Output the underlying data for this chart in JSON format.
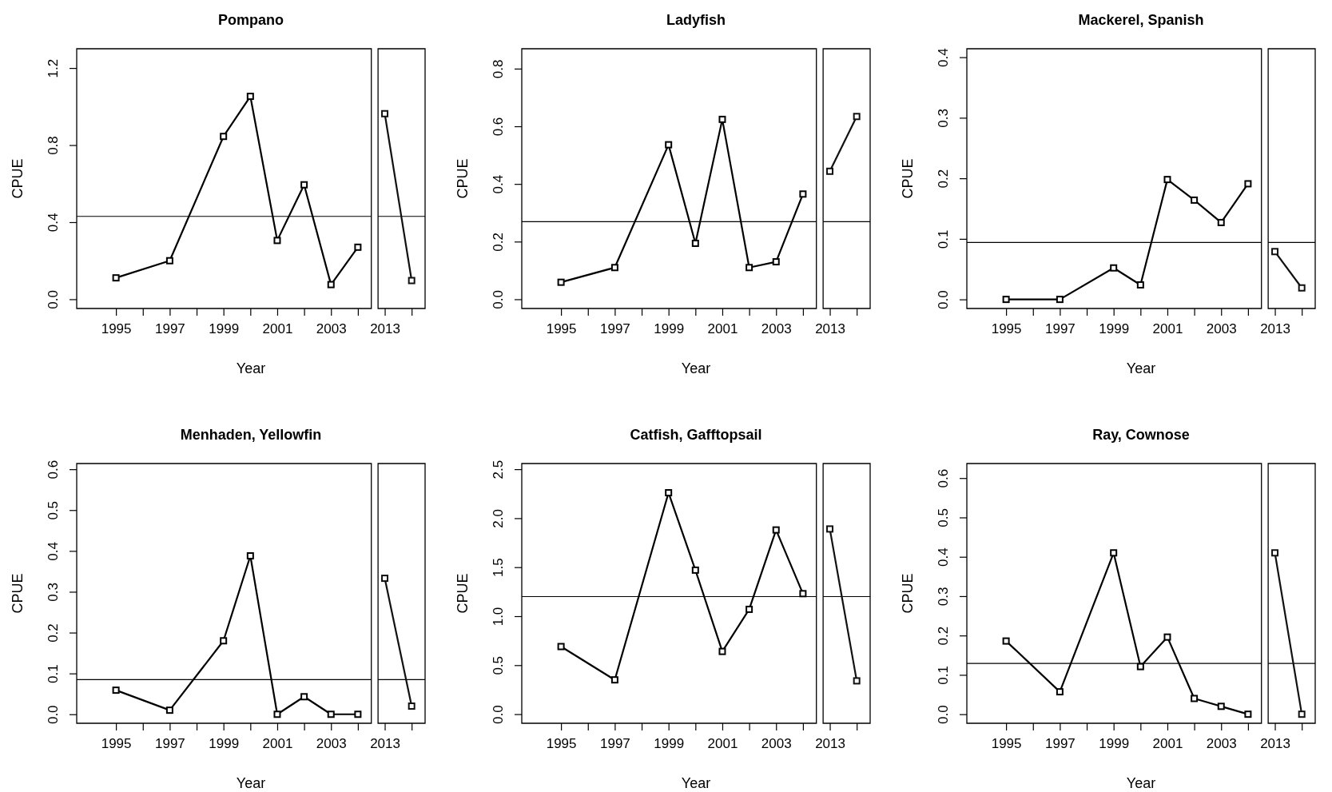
{
  "chart_data": [
    {
      "type": "line",
      "title": "Pompano",
      "xlabel": "Year",
      "ylabel": "CPUE",
      "marker": "square",
      "categories": [
        "1995",
        null,
        "1997",
        null,
        "1999",
        null,
        "2001",
        null,
        "2003",
        null,
        "2013",
        null
      ],
      "series": [
        {
          "color": "#000000",
          "values": [
            0.111,
            null,
            0.2,
            null,
            0.845,
            1.053,
            0.305,
            0.594,
            0.076,
            0.27,
            null,
            null
          ]
        },
        {
          "color": "#111111",
          "values": [
            null,
            null,
            null,
            null,
            null,
            null,
            null,
            null,
            null,
            null,
            0.963,
            0.097
          ]
        }
      ],
      "ylim": [
        -0.048,
        1.3
      ],
      "yticks": [
        {
          "value": 0,
          "label": "0.0"
        },
        0.4,
        0.8,
        1.2
      ],
      "ref_lines": [
        {
          "axis": "y",
          "value": 0.43
        }
      ]
    },
    {
      "type": "line",
      "title": "Ladyfish",
      "xlabel": "Year",
      "ylabel": "CPUE",
      "marker": "square",
      "categories": [
        "1995",
        null,
        "1997",
        null,
        "1999",
        null,
        "2001",
        null,
        "2003",
        null,
        "2013",
        null
      ],
      "series": [
        {
          "color": "#000000",
          "values": [
            0.059,
            null,
            0.11,
            null,
            0.536,
            0.194,
            0.624,
            0.11,
            0.13,
            0.365,
            null,
            null
          ]
        },
        {
          "color": "#111111",
          "values": [
            null,
            null,
            null,
            null,
            null,
            null,
            null,
            null,
            null,
            null,
            0.444,
            0.634
          ]
        }
      ],
      "ylim": [
        -0.032,
        0.869
      ],
      "yticks": [
        {
          "value": 0,
          "label": "0.0"
        },
        0.2,
        0.4,
        0.6,
        0.8
      ],
      "ref_lines": [
        {
          "axis": "y",
          "value": 0.269
        }
      ]
    },
    {
      "type": "line",
      "title": "Mackerel, Spanish",
      "xlabel": "Year",
      "ylabel": "CPUE",
      "marker": "square",
      "categories": [
        "1995",
        null,
        "1997",
        null,
        "1999",
        null,
        "2001",
        null,
        "2003",
        null,
        "2013",
        null
      ],
      "series": [
        {
          "color": "#000000",
          "values": [
            0,
            null,
            0,
            null,
            0.052,
            0.024,
            0.198,
            0.164,
            0.127,
            0.191,
            null,
            null
          ]
        },
        {
          "color": "#111111",
          "values": [
            null,
            null,
            null,
            null,
            null,
            null,
            null,
            null,
            null,
            null,
            0.079,
            0.019
          ]
        }
      ],
      "ylim": [
        -0.015,
        0.414
      ],
      "yticks": [
        {
          "value": 0,
          "label": "0.0"
        },
        0.1,
        0.2,
        0.3,
        0.4
      ],
      "ref_lines": [
        {
          "axis": "y",
          "value": 0.094
        }
      ]
    },
    {
      "type": "line",
      "title": "Menhaden, Yellowfin",
      "xlabel": "Year",
      "ylabel": "CPUE",
      "marker": "square",
      "categories": [
        "1995",
        null,
        "1997",
        null,
        "1999",
        null,
        "2001",
        null,
        "2003",
        null,
        "2013",
        null
      ],
      "series": [
        {
          "color": "#000000",
          "values": [
            0.059,
            null,
            0.01,
            null,
            0.18,
            0.388,
            0,
            0.043,
            0,
            0,
            null,
            null
          ]
        },
        {
          "color": "#111111",
          "values": [
            null,
            null,
            null,
            null,
            null,
            null,
            null,
            null,
            null,
            null,
            0.333,
            0.02
          ]
        }
      ],
      "ylim": [
        -0.022,
        0.614
      ],
      "yticks": [
        {
          "value": 0,
          "label": "0.0"
        },
        0.1,
        0.2,
        0.3,
        0.4,
        0.5,
        0.6
      ],
      "ref_lines": [
        {
          "axis": "y",
          "value": 0.085
        }
      ]
    },
    {
      "type": "line",
      "title": "Catfish, Gafftopsail",
      "xlabel": "Year",
      "ylabel": "CPUE",
      "marker": "square",
      "categories": [
        "1995",
        null,
        "1997",
        null,
        "1999",
        null,
        "2001",
        null,
        "2003",
        null,
        "2013",
        null
      ],
      "series": [
        {
          "color": "#000000",
          "values": [
            0.69,
            null,
            0.35,
            null,
            2.26,
            1.47,
            0.64,
            1.07,
            1.88,
            1.23,
            null,
            null
          ]
        },
        {
          "color": "#111111",
          "values": [
            null,
            null,
            null,
            null,
            null,
            null,
            null,
            null,
            null,
            null,
            1.89,
            0.34
          ]
        }
      ],
      "ylim": [
        -0.093,
        2.558
      ],
      "yticks": [
        {
          "value": 0,
          "label": "0.0"
        },
        0.5,
        {
          "value": 1,
          "label": "1.0"
        },
        1.5,
        {
          "value": 2,
          "label": "2.0"
        },
        2.5
      ],
      "ref_lines": [
        {
          "axis": "y",
          "value": 1.2
        }
      ]
    },
    {
      "type": "line",
      "title": "Ray, Cownose",
      "xlabel": "Year",
      "ylabel": "CPUE",
      "marker": "square",
      "categories": [
        "1995",
        null,
        "1997",
        null,
        "1999",
        null,
        "2001",
        null,
        "2003",
        null,
        "2013",
        null
      ],
      "series": [
        {
          "color": "#000000",
          "values": [
            0.186,
            null,
            0.057,
            null,
            0.41,
            0.121,
            0.196,
            0.04,
            0.02,
            0,
            null,
            null
          ]
        },
        {
          "color": "#111111",
          "values": [
            null,
            null,
            null,
            null,
            null,
            null,
            null,
            null,
            null,
            null,
            0.41,
            0
          ]
        }
      ],
      "ylim": [
        -0.023,
        0.637
      ],
      "yticks": [
        {
          "value": 0,
          "label": "0.0"
        },
        0.1,
        0.2,
        0.3,
        0.4,
        0.5,
        0.6
      ],
      "ref_lines": [
        {
          "axis": "y",
          "value": 0.129
        }
      ]
    }
  ]
}
